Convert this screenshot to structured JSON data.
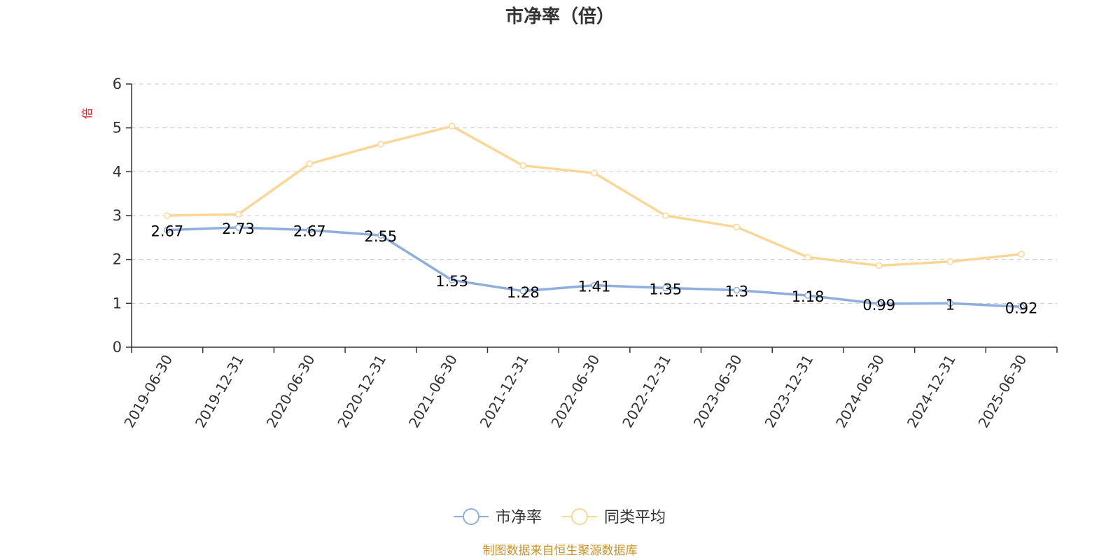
{
  "chart_data": {
    "type": "line",
    "title": "市净率（倍）",
    "ylabel": "倍",
    "ylim": [
      0,
      6
    ],
    "yticks": [
      "0",
      "1",
      "2",
      "3",
      "4",
      "5",
      "6"
    ],
    "categories": [
      "2019-06-30",
      "2019-12-31",
      "2020-06-30",
      "2020-12-31",
      "2021-06-30",
      "2021-12-31",
      "2022-06-30",
      "2022-12-31",
      "2023-06-30",
      "2023-12-31",
      "2024-06-30",
      "2024-12-31",
      "2025-06-30"
    ],
    "series": [
      {
        "name": "市净率",
        "color": "#8eaedb",
        "values": [
          2.67,
          2.73,
          2.67,
          2.55,
          1.53,
          1.28,
          1.41,
          1.35,
          1.3,
          1.18,
          0.99,
          1,
          0.92
        ],
        "labels": [
          "2.67",
          "2.73",
          "2.67",
          "2.55",
          "1.53",
          "1.28",
          "1.41",
          "1.35",
          "1.3",
          "1.18",
          "0.99",
          "1",
          "0.92"
        ]
      },
      {
        "name": "同类平均",
        "color": "#fad797",
        "values": [
          3.0,
          3.03,
          4.18,
          4.63,
          5.04,
          4.14,
          3.97,
          3.0,
          2.74,
          2.05,
          1.86,
          1.95,
          2.12
        ]
      }
    ],
    "grid": true,
    "legend_position": "bottom-center",
    "source": "制图数据来自恒生聚源数据库"
  }
}
